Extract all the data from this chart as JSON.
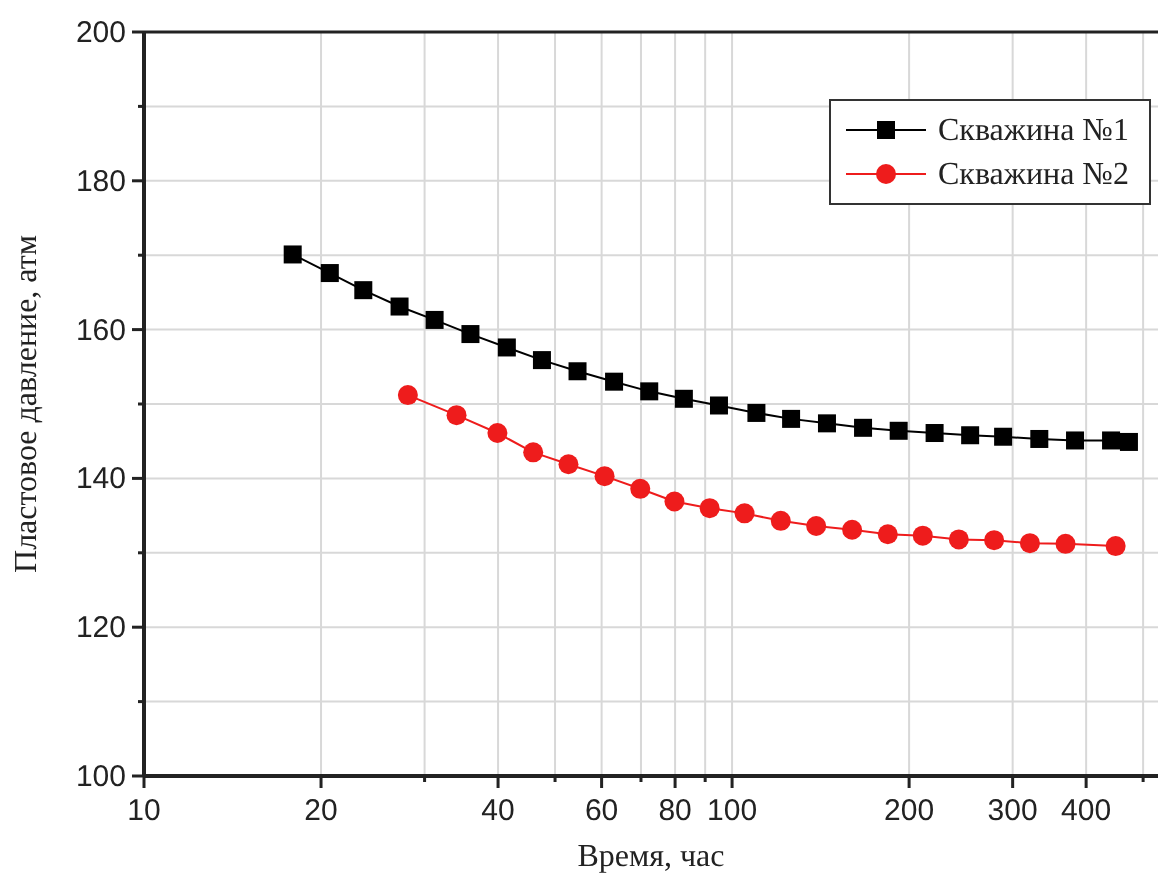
{
  "chart_data": {
    "type": "line",
    "xlabel": "Время, час",
    "ylabel": "Пластовое давление, атм",
    "log": "x",
    "grid": true,
    "legend": "top right",
    "line_style": "solid",
    "xlim": [
      10,
      530
    ],
    "ylim": [
      100,
      200
    ],
    "xticks": [
      10,
      20,
      {
        "value": 30,
        "label": null
      },
      40,
      {
        "value": 50,
        "label": null
      },
      60,
      {
        "value": 70,
        "label": null
      },
      80,
      {
        "value": 90,
        "label": null
      },
      100,
      200,
      300,
      400,
      {
        "value": 500,
        "label": null
      }
    ],
    "yticks": [
      100,
      {
        "value": 110,
        "label": null
      },
      120,
      {
        "value": 130,
        "label": null
      },
      140,
      {
        "value": 150,
        "label": null
      },
      160,
      {
        "value": 170,
        "label": null
      },
      180,
      {
        "value": 190,
        "label": null
      },
      200
    ],
    "series": [
      {
        "name": "Скважина №1",
        "color": "#000000",
        "marker": "square",
        "x": [
          17.9,
          20.7,
          23.6,
          27.2,
          31.2,
          35.9,
          41.4,
          47.5,
          54.6,
          63,
          72.3,
          82.8,
          95,
          110,
          126,
          145,
          167,
          192,
          221,
          254,
          289,
          333,
          383,
          441,
          473
        ],
        "values": [
          170.1,
          167.6,
          165.3,
          163.1,
          161.3,
          159.4,
          157.6,
          155.9,
          154.4,
          153,
          151.7,
          150.7,
          149.8,
          148.8,
          148,
          147.4,
          146.8,
          146.4,
          146.1,
          145.8,
          145.6,
          145.3,
          145.1,
          145.1,
          144.9
        ]
      },
      {
        "name": "Скважина №2",
        "color": "#ee1c1c",
        "marker": "circle",
        "x": [
          28.1,
          34,
          39.9,
          45.9,
          52.7,
          60.7,
          69.8,
          79.8,
          91.6,
          105,
          121,
          139,
          160,
          184,
          211,
          243,
          279,
          321,
          369,
          449
        ],
        "values": [
          151.2,
          148.5,
          146.1,
          143.5,
          141.9,
          140.3,
          138.6,
          136.9,
          136.0,
          135.3,
          134.3,
          133.6,
          133.1,
          132.5,
          132.3,
          131.8,
          131.7,
          131.3,
          131.2,
          130.9
        ]
      }
    ]
  }
}
